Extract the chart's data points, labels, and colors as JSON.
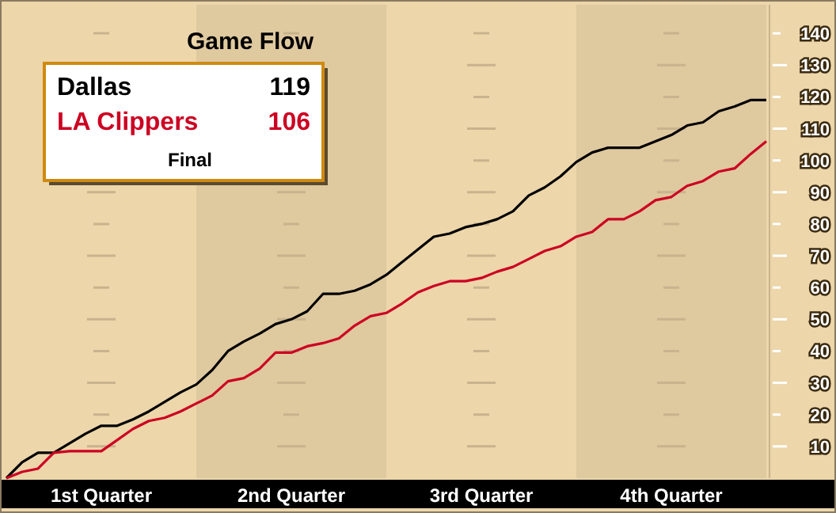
{
  "chart_data": {
    "type": "line",
    "title": "Game Flow",
    "annotations": [
      "119",
      "106",
      "Final"
    ],
    "categories": [
      null,
      null,
      null,
      null,
      null,
      null,
      "1st Quarter",
      null,
      null,
      null,
      null,
      null,
      null,
      null,
      null,
      null,
      null,
      null,
      "2nd Quarter",
      null,
      null,
      null,
      null,
      null,
      null,
      null,
      null,
      null,
      null,
      null,
      "3rd Quarter",
      null,
      null,
      null,
      null,
      null,
      null,
      null,
      null,
      null,
      null,
      null,
      "4th Quarter",
      null,
      null,
      null,
      null,
      null,
      null
    ],
    "series": [
      {
        "name": "Dallas",
        "color": "#000000",
        "values": [
          0,
          5,
          8,
          8,
          11,
          14,
          16.5,
          16.5,
          18.5,
          21,
          24,
          27,
          29.5,
          34,
          40,
          43,
          45.5,
          48.5,
          50,
          52.5,
          58,
          58,
          59,
          61,
          64,
          68,
          72,
          76,
          77,
          79,
          80,
          81.5,
          84,
          89,
          91.5,
          95,
          99.5,
          102.5,
          104,
          104,
          104,
          106,
          108,
          111,
          112,
          115.5,
          117,
          119,
          119
        ]
      },
      {
        "name": "LA Clippers",
        "color": "#cc0022",
        "values": [
          0,
          2,
          3,
          8,
          8.5,
          8.5,
          8.5,
          12,
          15.5,
          18,
          19,
          21,
          23.5,
          26,
          30.5,
          31.5,
          34.5,
          39.5,
          39.5,
          41.5,
          42.5,
          44,
          48,
          51,
          52,
          55,
          58.5,
          60.5,
          62,
          62,
          63,
          65,
          66.5,
          69,
          71.5,
          73,
          76,
          77.5,
          81.5,
          81.5,
          84,
          87.5,
          88.5,
          92,
          93.5,
          96.5,
          97.5,
          102,
          106
        ]
      }
    ],
    "ylim": [
      0,
      149
    ],
    "yticks": [
      10,
      20,
      30,
      40,
      50,
      60,
      70,
      80,
      90,
      100,
      110,
      120,
      130,
      140
    ],
    "grid": "y",
    "legend": "top left",
    "marker": "none",
    "line_style": "solid"
  }
}
